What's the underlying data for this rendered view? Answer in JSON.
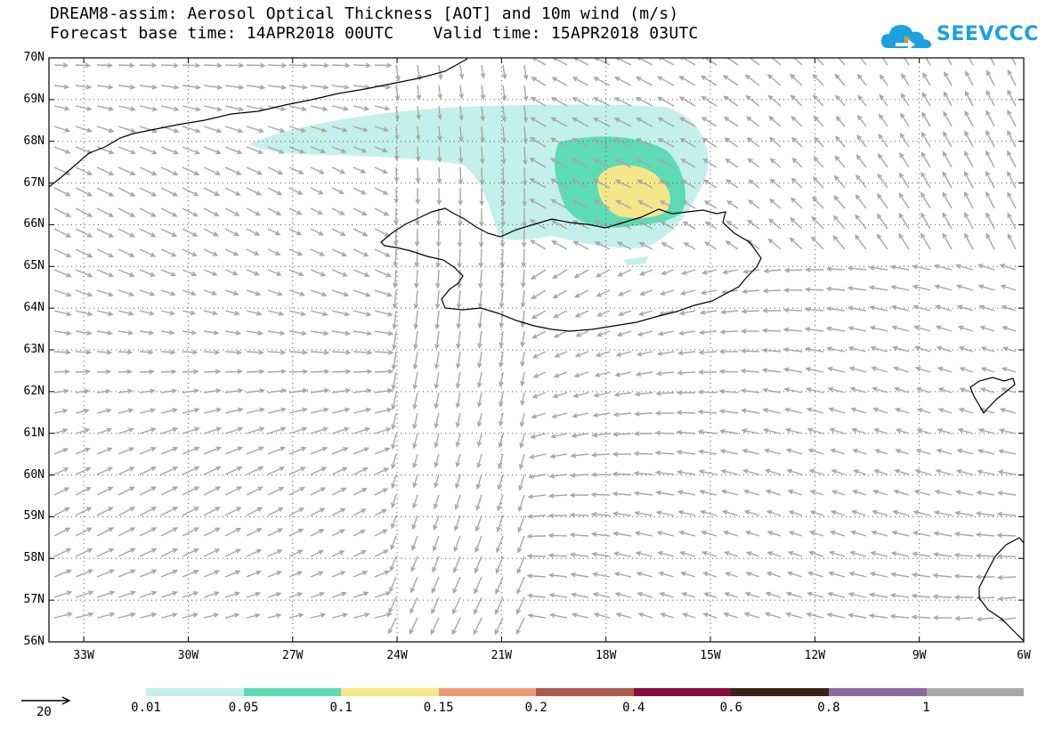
{
  "header": {
    "title_line1": "DREAM8-assim: Aerosol Optical Thickness [AOT] and 10m wind (m/s)",
    "title_line2": "Forecast base time: 14APR2018 00UTC    Valid time: 15APR2018 03UTC"
  },
  "logo": {
    "text": "SEEVCCC",
    "color": "#1ba1df"
  },
  "map": {
    "lat_labels": [
      "70N",
      "69N",
      "68N",
      "67N",
      "66N",
      "65N",
      "64N",
      "63N",
      "62N",
      "61N",
      "60N",
      "59N",
      "58N",
      "57N",
      "56N"
    ],
    "lon_labels": [
      "33W",
      "30W",
      "27W",
      "24W",
      "21W",
      "18W",
      "15W",
      "12W",
      "9W",
      "6W"
    ],
    "lat_range": [
      56,
      70
    ],
    "lon_range": [
      -34,
      -6
    ],
    "grid": "dotted",
    "wind_arrow_color": "#a6a6a6",
    "coastline_color": "#000000"
  },
  "legend": {
    "levels": [
      "0.01",
      "0.05",
      "0.1",
      "0.15",
      "0.2",
      "0.4",
      "0.6",
      "0.8",
      "1"
    ],
    "colors": [
      "#c4f0eb",
      "#5ddbb5",
      "#f6e68a",
      "#ec9a73",
      "#ab5a4e",
      "#8a0a3c",
      "#3a2315",
      "#8e6aa0",
      "#a8a8a8"
    ],
    "wind_reference": "20"
  }
}
